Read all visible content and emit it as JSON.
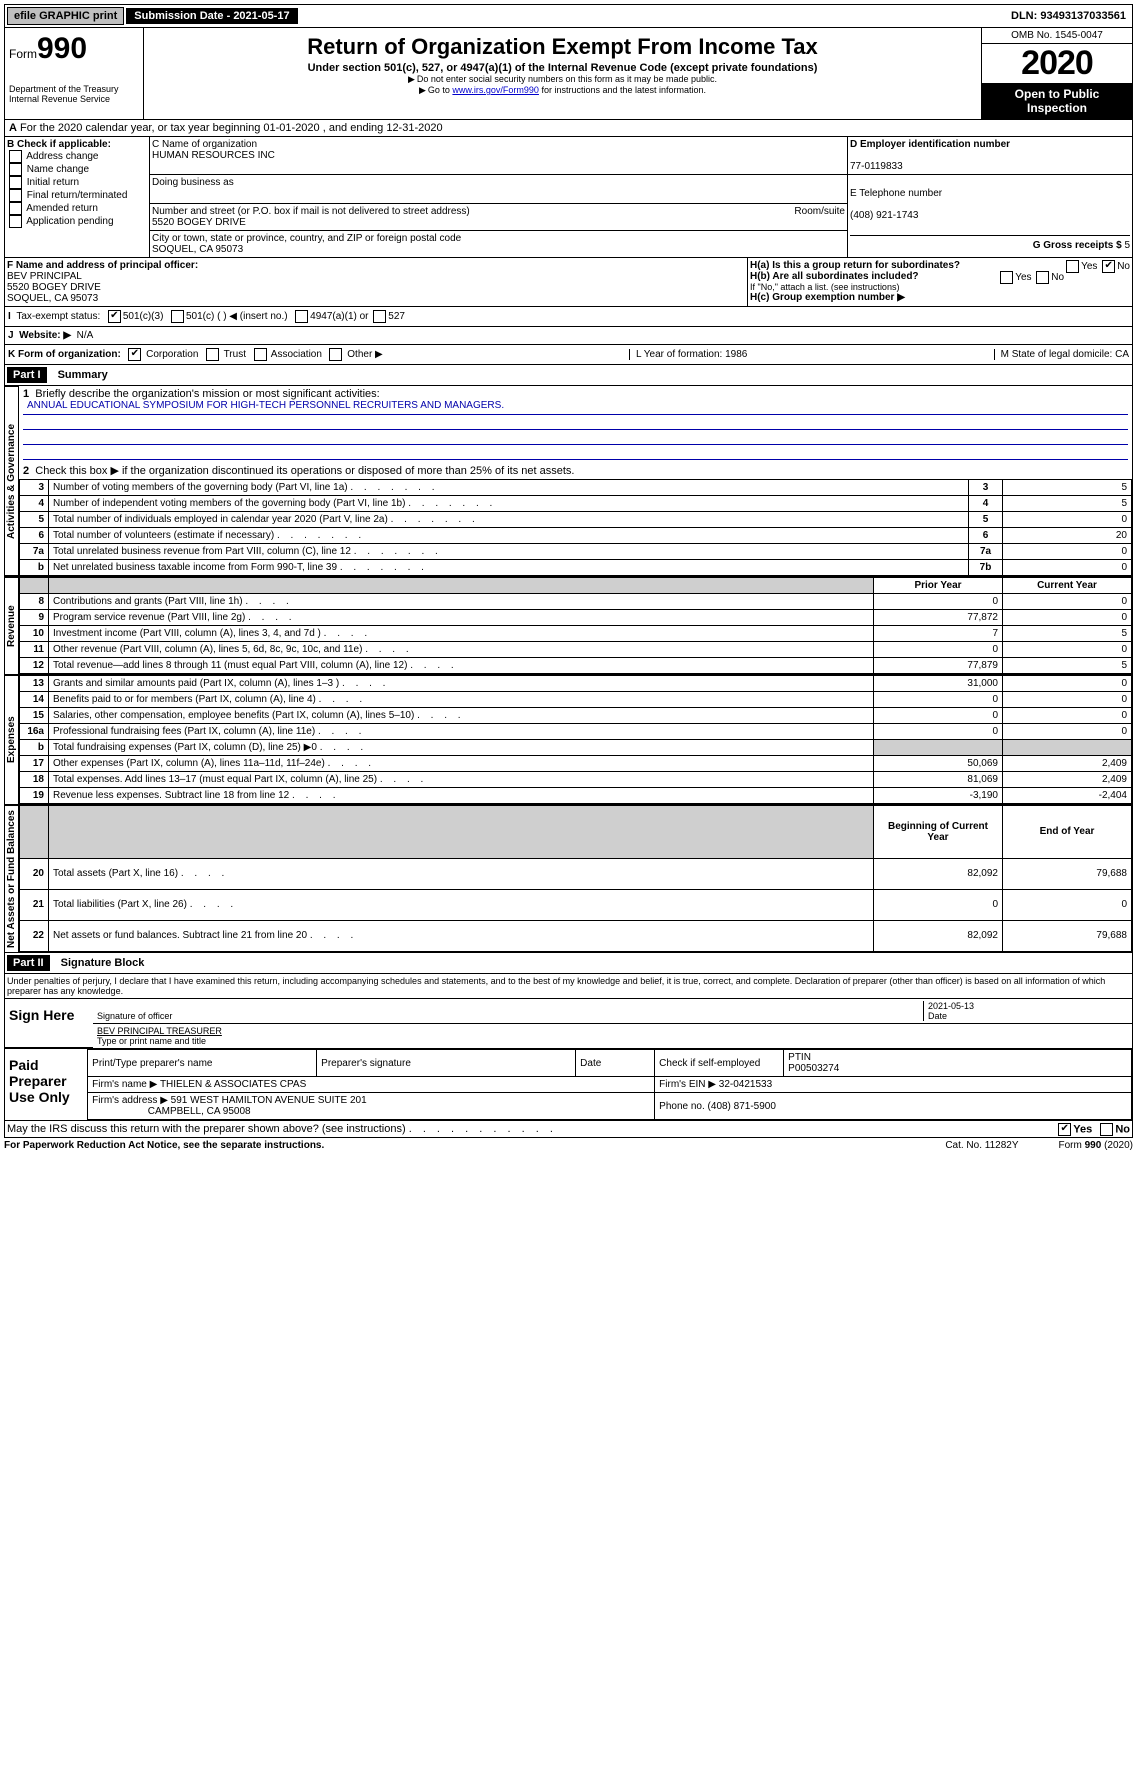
{
  "topbar": {
    "efile": "efile GRAPHIC print",
    "sub_label": "Submission Date - 2021-05-17",
    "dln": "DLN: 93493137033561"
  },
  "header": {
    "form_word": "Form",
    "form_num": "990",
    "title": "Return of Organization Exempt From Income Tax",
    "subtitle": "Under section 501(c), 527, or 4947(a)(1) of the Internal Revenue Code (except private foundations)",
    "note1": "Do not enter social security numbers on this form as it may be made public.",
    "note2_pre": "Go to ",
    "note2_link": "www.irs.gov/Form990",
    "note2_post": " for instructions and the latest information.",
    "dept": "Department of the Treasury\nInternal Revenue Service",
    "omb": "OMB No. 1545-0047",
    "year": "2020",
    "open": "Open to Public Inspection"
  },
  "sectionA": {
    "text": "For the 2020 calendar year, or tax year beginning 01-01-2020    , and ending 12-31-2020"
  },
  "boxB": {
    "label": "B Check if applicable:",
    "opts": [
      "Address change",
      "Name change",
      "Initial return",
      "Final return/terminated",
      "Amended return",
      "Application pending"
    ]
  },
  "boxC": {
    "name_label": "C Name of organization",
    "name": "HUMAN RESOURCES INC",
    "dba_label": "Doing business as",
    "street_label": "Number and street (or P.O. box if mail is not delivered to street address)",
    "room_label": "Room/suite",
    "street": "5520 BOGEY DRIVE",
    "city_label": "City or town, state or province, country, and ZIP or foreign postal code",
    "city": "SOQUEL, CA  95073"
  },
  "boxD": {
    "label": "D Employer identification number",
    "value": "77-0119833"
  },
  "boxE": {
    "label": "E Telephone number",
    "value": "(408) 921-1743"
  },
  "boxG": {
    "label": "G Gross receipts $",
    "value": "5"
  },
  "boxF": {
    "label": "F  Name and address of principal officer:",
    "name": "BEV PRINCIPAL",
    "street": "5520 BOGEY DRIVE",
    "city": "SOQUEL, CA  95073"
  },
  "boxH": {
    "ha": "H(a)  Is this a group return for subordinates?",
    "hb": "H(b)  Are all subordinates included?",
    "hb_note": "If \"No,\" attach a list. (see instructions)",
    "hc": "H(c)  Group exemption number ▶",
    "yes": "Yes",
    "no": "No"
  },
  "rowI": {
    "label": "Tax-exempt status:",
    "opt1": "501(c)(3)",
    "opt2": "501(c) (  ) ◀ (insert no.)",
    "opt3": "4947(a)(1) or",
    "opt4": "527"
  },
  "rowJ": {
    "label": "Website: ▶",
    "value": "N/A"
  },
  "rowK": {
    "label": "K Form of organization:",
    "opts": [
      "Corporation",
      "Trust",
      "Association",
      "Other ▶"
    ],
    "l": "L Year of formation: 1986",
    "m": "M State of legal domicile: CA"
  },
  "part1": {
    "title": "Part I",
    "heading": "Summary",
    "q1": "Briefly describe the organization's mission or most significant activities:",
    "q1_ans": "ANNUAL EDUCATIONAL SYMPOSIUM FOR HIGH-TECH PERSONNEL RECRUITERS AND MANAGERS.",
    "q2": "Check this box ▶     if the organization discontinued its operations or disposed of more than 25% of its net assets.",
    "rows_gov": [
      {
        "n": "3",
        "t": "Number of voting members of the governing body (Part VI, line 1a)",
        "lab": "3",
        "v": "5"
      },
      {
        "n": "4",
        "t": "Number of independent voting members of the governing body (Part VI, line 1b)",
        "lab": "4",
        "v": "5"
      },
      {
        "n": "5",
        "t": "Total number of individuals employed in calendar year 2020 (Part V, line 2a)",
        "lab": "5",
        "v": "0"
      },
      {
        "n": "6",
        "t": "Total number of volunteers (estimate if necessary)",
        "lab": "6",
        "v": "20"
      },
      {
        "n": "7a",
        "t": "Total unrelated business revenue from Part VIII, column (C), line 12",
        "lab": "7a",
        "v": "0"
      },
      {
        "n": "b",
        "t": "Net unrelated business taxable income from Form 990-T, line 39",
        "lab": "7b",
        "v": "0"
      }
    ],
    "col_prior": "Prior Year",
    "col_curr": "Current Year",
    "rows_rev": [
      {
        "n": "8",
        "t": "Contributions and grants (Part VIII, line 1h)",
        "p": "0",
        "c": "0"
      },
      {
        "n": "9",
        "t": "Program service revenue (Part VIII, line 2g)",
        "p": "77,872",
        "c": "0"
      },
      {
        "n": "10",
        "t": "Investment income (Part VIII, column (A), lines 3, 4, and 7d )",
        "p": "7",
        "c": "5"
      },
      {
        "n": "11",
        "t": "Other revenue (Part VIII, column (A), lines 5, 6d, 8c, 9c, 10c, and 11e)",
        "p": "0",
        "c": "0"
      },
      {
        "n": "12",
        "t": "Total revenue—add lines 8 through 11 (must equal Part VIII, column (A), line 12)",
        "p": "77,879",
        "c": "5"
      }
    ],
    "rows_exp": [
      {
        "n": "13",
        "t": "Grants and similar amounts paid (Part IX, column (A), lines 1–3 )",
        "p": "31,000",
        "c": "0"
      },
      {
        "n": "14",
        "t": "Benefits paid to or for members (Part IX, column (A), line 4)",
        "p": "0",
        "c": "0"
      },
      {
        "n": "15",
        "t": "Salaries, other compensation, employee benefits (Part IX, column (A), lines 5–10)",
        "p": "0",
        "c": "0"
      },
      {
        "n": "16a",
        "t": "Professional fundraising fees (Part IX, column (A), line 11e)",
        "p": "0",
        "c": "0"
      },
      {
        "n": "b",
        "t": "Total fundraising expenses (Part IX, column (D), line 25) ▶0",
        "p": "",
        "c": "",
        "shade": true
      },
      {
        "n": "17",
        "t": "Other expenses (Part IX, column (A), lines 11a–11d, 11f–24e)",
        "p": "50,069",
        "c": "2,409"
      },
      {
        "n": "18",
        "t": "Total expenses. Add lines 13–17 (must equal Part IX, column (A), line 25)",
        "p": "81,069",
        "c": "2,409"
      },
      {
        "n": "19",
        "t": "Revenue less expenses. Subtract line 18 from line 12",
        "p": "-3,190",
        "c": "-2,404"
      }
    ],
    "col_beg": "Beginning of Current Year",
    "col_end": "End of Year",
    "rows_net": [
      {
        "n": "20",
        "t": "Total assets (Part X, line 16)",
        "p": "82,092",
        "c": "79,688"
      },
      {
        "n": "21",
        "t": "Total liabilities (Part X, line 26)",
        "p": "0",
        "c": "0"
      },
      {
        "n": "22",
        "t": "Net assets or fund balances. Subtract line 21 from line 20",
        "p": "82,092",
        "c": "79,688"
      }
    ],
    "vlab_gov": "Activities & Governance",
    "vlab_rev": "Revenue",
    "vlab_exp": "Expenses",
    "vlab_net": "Net Assets or Fund Balances"
  },
  "part2": {
    "title": "Part II",
    "heading": "Signature Block",
    "perjury": "Under penalties of perjury, I declare that I have examined this return, including accompanying schedules and statements, and to the best of my knowledge and belief, it is true, correct, and complete. Declaration of preparer (other than officer) is based on all information of which preparer has any knowledge.",
    "sign_here": "Sign Here",
    "sig_officer": "Signature of officer",
    "sig_date": "2021-05-13",
    "date_label": "Date",
    "name_title": "BEV PRINCIPAL TREASURER",
    "type_label": "Type or print name and title",
    "paid": "Paid Preparer Use Only",
    "prep_name_label": "Print/Type preparer's name",
    "prep_sig_label": "Preparer's signature",
    "prep_date_label": "Date",
    "check_self": "Check      if self-employed",
    "ptin_label": "PTIN",
    "ptin": "P00503274",
    "firm_name_label": "Firm's name    ▶",
    "firm_name": "THIELEN & ASSOCIATES CPAS",
    "firm_ein_label": "Firm's EIN ▶",
    "firm_ein": "32-0421533",
    "firm_addr_label": "Firm's address ▶",
    "firm_addr1": "591 WEST HAMILTON AVENUE SUITE 201",
    "firm_addr2": "CAMPBELL, CA  95008",
    "phone_label": "Phone no.",
    "phone": "(408) 871-5900",
    "discuss": "May the IRS discuss this return with the preparer shown above? (see instructions)",
    "yes": "Yes",
    "no": "No"
  },
  "footer": {
    "pra": "For Paperwork Reduction Act Notice, see the separate instructions.",
    "cat": "Cat. No. 11282Y",
    "form": "Form 990 (2020)"
  }
}
